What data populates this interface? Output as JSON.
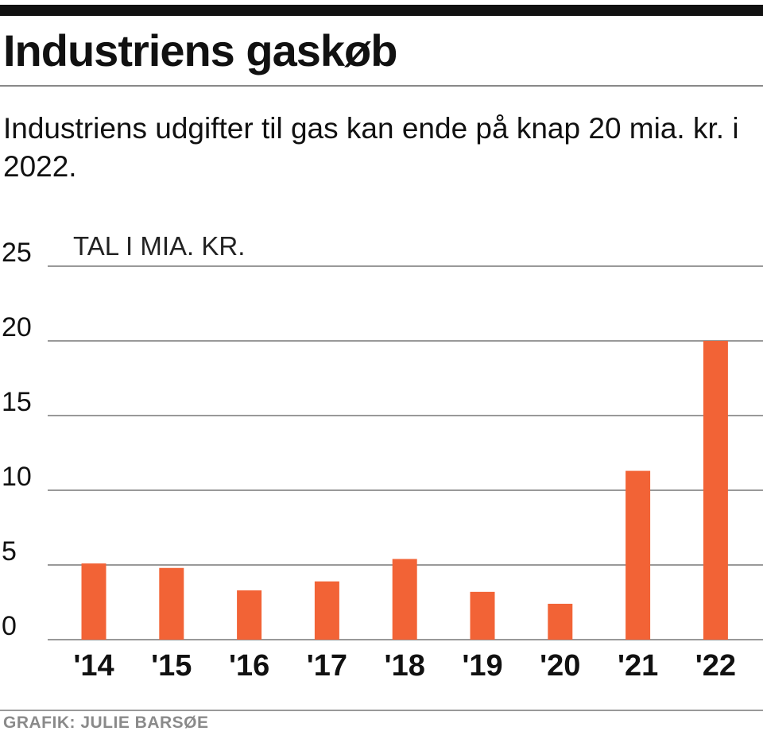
{
  "header": {
    "title": "Industriens gaskøb",
    "subtitle": "Industriens udgifter til gas kan ende på knap 20 mia. kr. i 2022."
  },
  "footer": {
    "credit": "GRAFIK: JULIE BARSØE"
  },
  "colors": {
    "bar": "#f26336",
    "grid": "#999999",
    "text": "#111111"
  },
  "chart_data": {
    "type": "bar",
    "unit_label": "TAL I MIA. KR.",
    "categories": [
      "'14",
      "'15",
      "'16",
      "'17",
      "'18",
      "'19",
      "'20",
      "'21",
      "'22"
    ],
    "values": [
      5.1,
      4.8,
      3.3,
      3.9,
      5.4,
      3.2,
      2.4,
      11.3,
      20.0
    ],
    "yticks": [
      0,
      5,
      10,
      15,
      20,
      25
    ],
    "ylim": [
      0,
      25
    ],
    "grid": true,
    "legend": "none"
  }
}
